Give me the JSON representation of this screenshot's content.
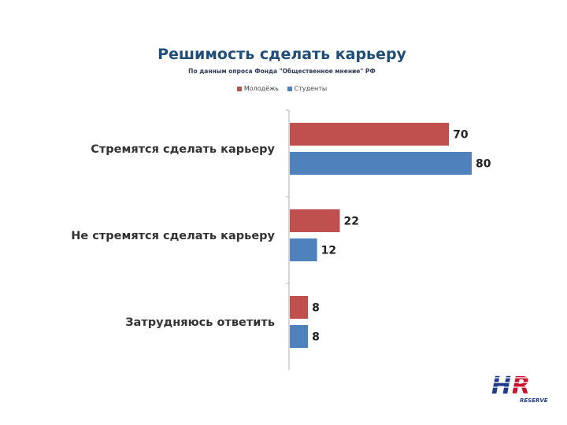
{
  "chart_data": {
    "type": "bar",
    "orientation": "horizontal",
    "title": "Решимость сделать карьеру",
    "subtitle": "По данным опроса Фонда \"Общественное мнение\" РФ",
    "categories": [
      "Стремятся сделать карьеру",
      "Не стремятся сделать карьеру",
      "Затрудняюсь ответить"
    ],
    "series": [
      {
        "name": "Молодёжь",
        "color": "#c0504d",
        "values": [
          70,
          22,
          8
        ]
      },
      {
        "name": "Студенты",
        "color": "#4f81bd",
        "values": [
          80,
          12,
          8
        ]
      }
    ],
    "xlim": [
      0,
      80
    ],
    "grid": false,
    "legend_position": "top"
  },
  "logo": {
    "text": "HR",
    "subtext": "RESERVE",
    "colors": [
      "#1f3a8a",
      "#c8102e"
    ]
  }
}
